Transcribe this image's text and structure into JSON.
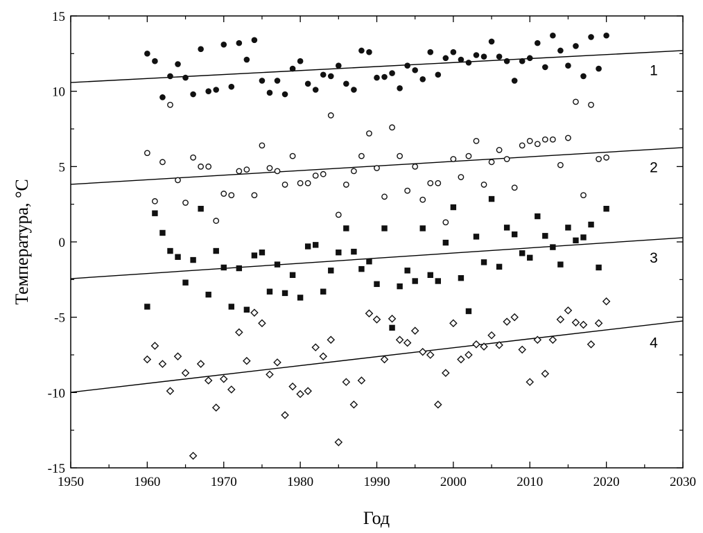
{
  "chart_data": {
    "type": "scatter",
    "title": "",
    "xlabel": "Год",
    "ylabel": "Температура, °C",
    "xlim": [
      1950,
      2030
    ],
    "ylim": [
      -15,
      15
    ],
    "xticks": [
      1950,
      1960,
      1970,
      1980,
      1990,
      2000,
      2010,
      2020,
      2030
    ],
    "yticks": [
      -15,
      -10,
      -5,
      0,
      5,
      10,
      15
    ],
    "grid": false,
    "x_start": 1960,
    "series": [
      {
        "label": "1",
        "marker": "filled-circle",
        "values": [
          12.5,
          12.0,
          9.6,
          11.0,
          11.8,
          10.9,
          9.8,
          12.8,
          10.0,
          10.1,
          13.1,
          10.3,
          13.2,
          12.1,
          13.4,
          10.7,
          9.9,
          10.7,
          9.8,
          11.5,
          12.0,
          10.5,
          10.1,
          11.1,
          11.0,
          11.7,
          10.5,
          10.1,
          12.7,
          12.6,
          10.9,
          10.95,
          11.2,
          10.2,
          11.7,
          11.4,
          10.8,
          12.6,
          11.1,
          12.2,
          12.6,
          12.1,
          11.9,
          12.4,
          12.3,
          13.3,
          12.3,
          12.0,
          10.7,
          12.0,
          12.2,
          13.2,
          11.6,
          13.7,
          12.7,
          11.7,
          13.0,
          11.0,
          13.6,
          11.5,
          13.7
        ],
        "trend": [
          10.58,
          12.7
        ]
      },
      {
        "label": "2",
        "marker": "open-circle",
        "values": [
          5.9,
          2.7,
          5.3,
          9.1,
          4.1,
          2.6,
          5.6,
          5.0,
          5.0,
          1.4,
          3.2,
          3.1,
          4.7,
          4.8,
          3.1,
          6.4,
          4.9,
          4.7,
          3.8,
          5.7,
          3.9,
          3.9,
          4.4,
          4.5,
          8.4,
          1.8,
          3.8,
          4.7,
          5.7,
          7.2,
          4.9,
          3.0,
          7.6,
          5.7,
          3.4,
          5.0,
          2.8,
          3.9,
          3.9,
          1.3,
          5.5,
          4.3,
          5.7,
          6.7,
          3.8,
          5.3,
          6.1,
          5.5,
          3.6,
          6.4,
          6.7,
          6.5,
          6.8,
          6.8,
          5.1,
          6.9,
          9.3,
          3.1,
          9.1,
          5.5,
          5.6
        ],
        "trend": [
          3.82,
          6.26
        ]
      },
      {
        "label": "3",
        "marker": "filled-square",
        "values": [
          -4.3,
          1.9,
          0.6,
          -0.6,
          -1.0,
          -2.7,
          -1.2,
          2.2,
          -3.5,
          -0.6,
          -1.7,
          -4.3,
          -1.75,
          -4.5,
          -0.9,
          -0.7,
          -3.3,
          -1.5,
          -3.4,
          -2.2,
          -3.7,
          -0.3,
          -0.2,
          -3.3,
          -1.9,
          -0.7,
          0.9,
          -0.65,
          -1.8,
          -1.3,
          -2.8,
          0.9,
          -5.7,
          -2.95,
          -1.9,
          -2.6,
          0.9,
          -2.2,
          -2.6,
          -0.05,
          2.3,
          -2.4,
          -4.6,
          0.35,
          -1.35,
          2.85,
          -1.65,
          0.95,
          0.5,
          -0.75,
          -1.05,
          1.7,
          0.4,
          -0.35,
          -1.5,
          0.95,
          0.1,
          0.3,
          1.15,
          -1.7,
          2.2
        ],
        "trend": [
          -2.44,
          0.28
        ]
      },
      {
        "label": "4",
        "marker": "open-diamond",
        "values": [
          -7.8,
          -6.9,
          -8.1,
          -9.9,
          -7.6,
          -8.7,
          -14.2,
          -8.1,
          -9.2,
          -11.0,
          -9.1,
          -9.8,
          -6.0,
          -7.9,
          -4.7,
          -5.4,
          -8.8,
          -8.0,
          -11.5,
          -9.6,
          -10.1,
          -9.9,
          -7.0,
          -7.6,
          -6.5,
          -13.3,
          -9.3,
          -10.8,
          -9.2,
          -4.75,
          -5.15,
          -7.8,
          -5.1,
          -6.5,
          -6.7,
          -5.9,
          -7.3,
          -7.5,
          -10.8,
          -8.7,
          -5.4,
          -7.8,
          -7.5,
          -6.8,
          -6.95,
          -6.2,
          -6.85,
          -5.3,
          -5.0,
          -7.15,
          -9.3,
          -6.5,
          -8.75,
          -6.5,
          -5.15,
          -4.55,
          -5.35,
          -5.5,
          -6.8,
          -5.4,
          -3.95
        ],
        "trend": [
          -9.99,
          -5.25
        ]
      }
    ]
  }
}
